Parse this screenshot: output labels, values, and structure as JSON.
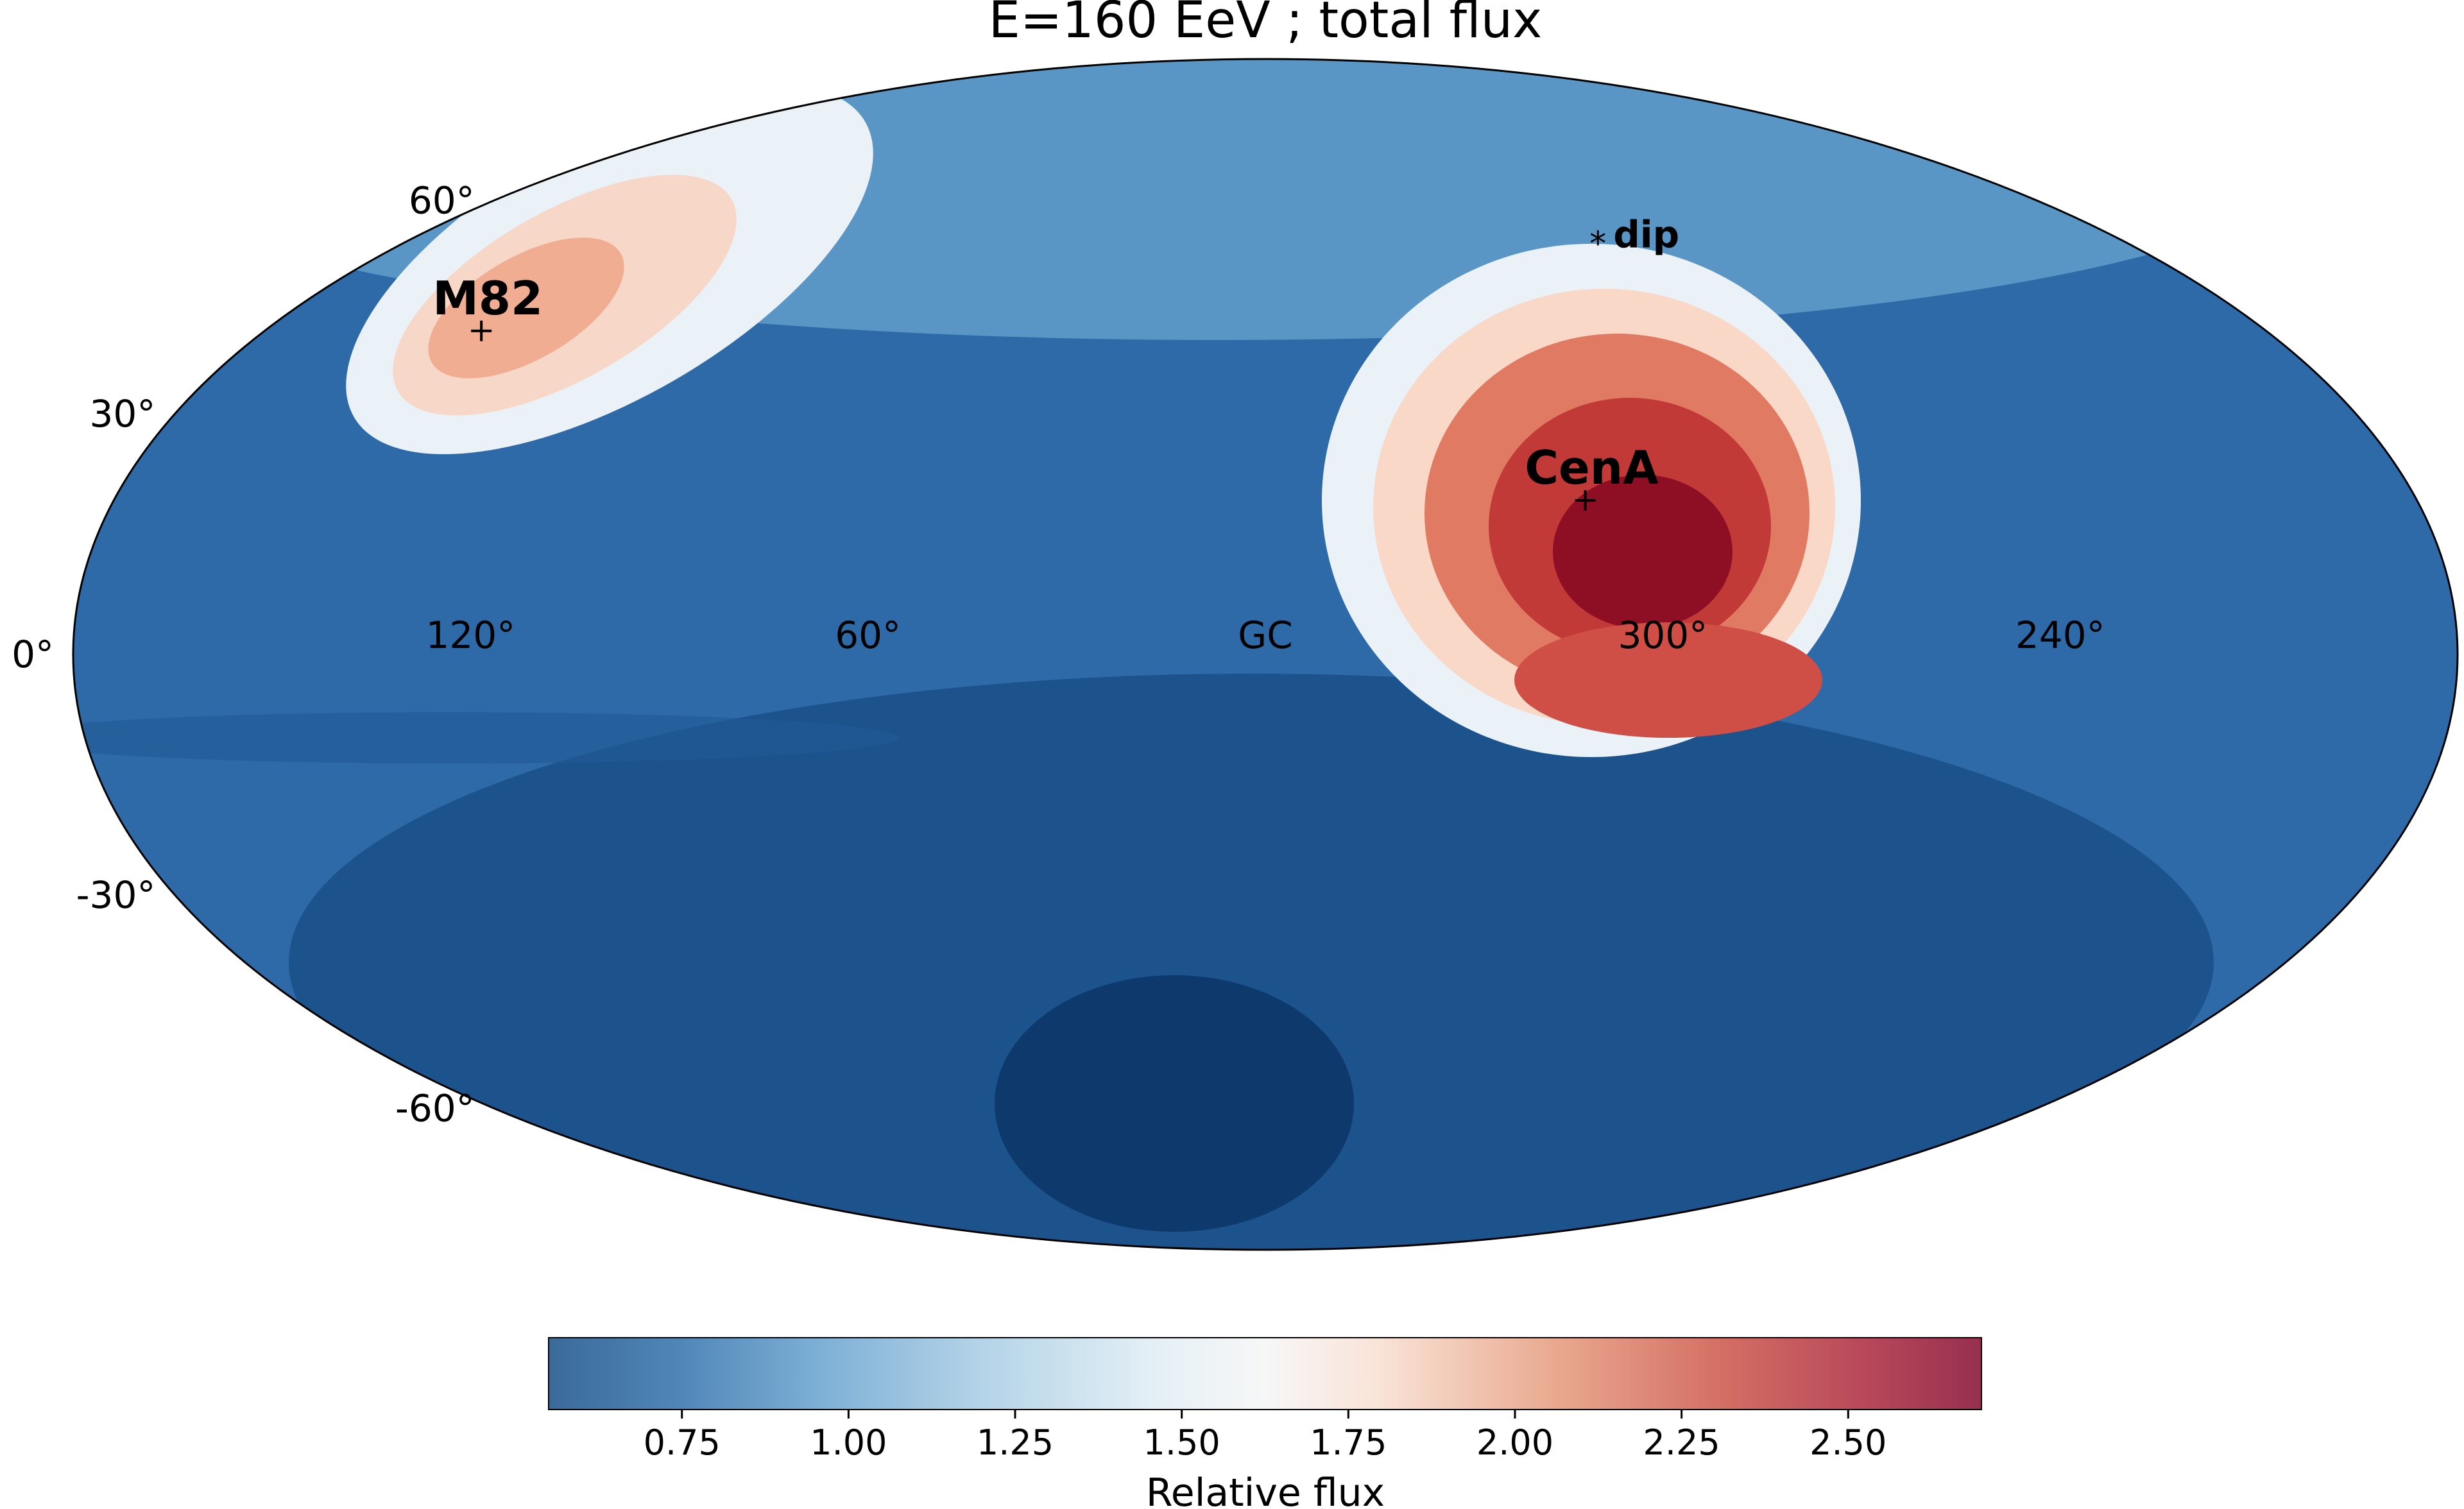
{
  "chart_data": {
    "type": "heatmap",
    "projection": "mollweide",
    "title": "E=160 EeV ; total flux",
    "lat_tick_labels": [
      {
        "lat": 60,
        "label": "60°"
      },
      {
        "lat": 30,
        "label": "30°"
      },
      {
        "lat": 0,
        "label": "0°"
      },
      {
        "lat": -30,
        "label": "-30°"
      },
      {
        "lat": -60,
        "label": "-60°"
      }
    ],
    "lon_tick_labels": [
      {
        "lon": 120,
        "label": "120°"
      },
      {
        "lon": 60,
        "label": "60°"
      },
      {
        "lon": 0,
        "label": "GC"
      },
      {
        "lon": 300,
        "label": "300°"
      },
      {
        "lon": 240,
        "label": "240°"
      }
    ],
    "markers": [
      {
        "name": "M82",
        "label": "M82",
        "lon": 141,
        "lat": 41,
        "symbol": "+"
      },
      {
        "name": "CenA",
        "label": "CenA",
        "lon": 310,
        "lat": 19,
        "symbol": "+"
      },
      {
        "name": "dip",
        "label": "dip",
        "lon": 290,
        "lat": 54,
        "symbol": "*"
      }
    ],
    "flux_hotspots": [
      {
        "region": "CenA",
        "lon": 302,
        "lat": 10,
        "peak": 2.7
      },
      {
        "region": "M82",
        "lon": 142,
        "lat": 38,
        "peak": 1.9
      },
      {
        "region": "southern minimum",
        "lon": 355,
        "lat": -45,
        "peak": 0.55
      }
    ],
    "colorbar": {
      "label": "Relative flux",
      "min": 0.55,
      "max": 2.7,
      "ticks": [
        0.75,
        1.0,
        1.25,
        1.5,
        1.75,
        2.0,
        2.25,
        2.5
      ],
      "tick_labels": [
        "0.75",
        "1.00",
        "1.25",
        "1.50",
        "1.75",
        "2.00",
        "2.25",
        "2.50"
      ],
      "colormap": [
        "#053061",
        "#2166ac",
        "#4393c3",
        "#92c5de",
        "#d1e5f0",
        "#f7f7f7",
        "#fddbc7",
        "#f4a582",
        "#d6604d",
        "#b2182b",
        "#67001f"
      ]
    }
  }
}
